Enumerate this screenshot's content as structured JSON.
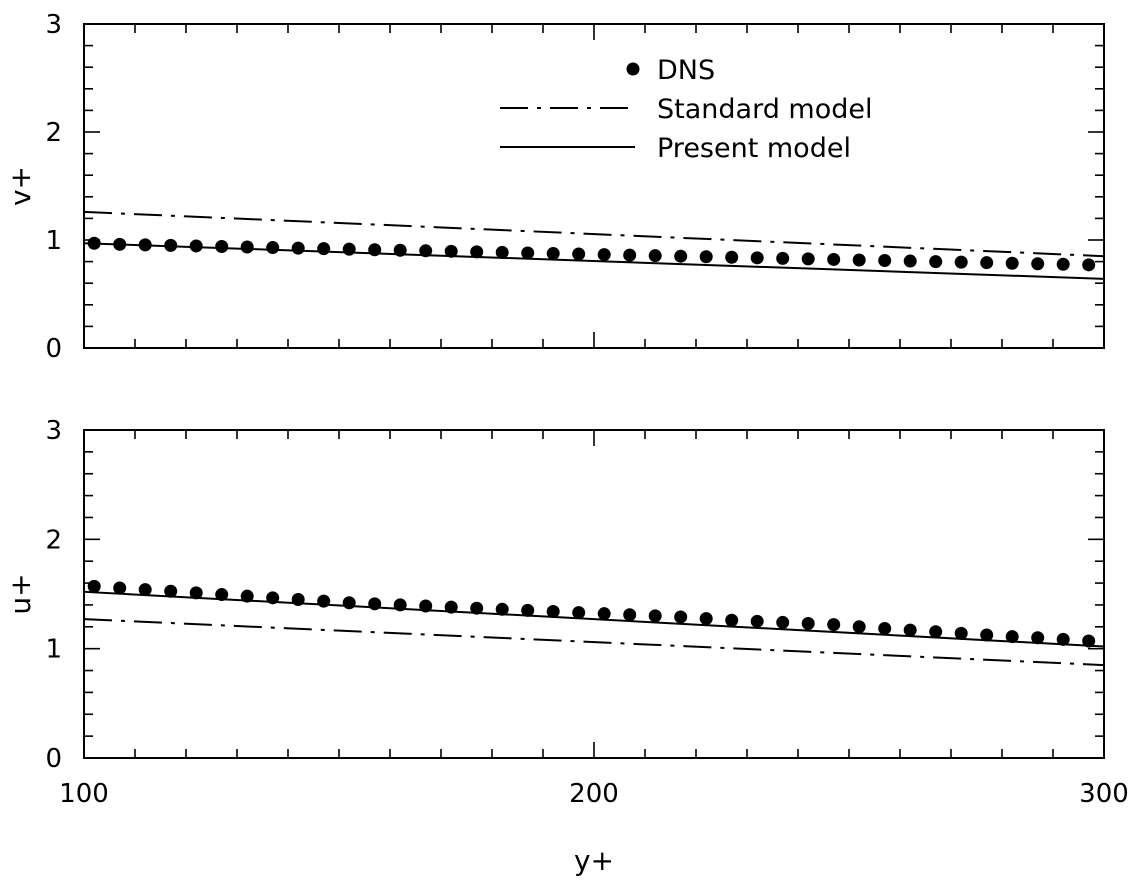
{
  "chart_data": [
    {
      "type": "line",
      "panel": "top",
      "title": "",
      "xlabel": "",
      "ylabel": "v+",
      "xlim": [
        100,
        300
      ],
      "ylim": [
        0,
        3
      ],
      "xticks": [
        100,
        200,
        300
      ],
      "yticks": [
        "0",
        "1",
        "2",
        "3"
      ],
      "legend": {
        "position": "top-center",
        "entries": [
          {
            "label": "DNS",
            "style": "dots"
          },
          {
            "label": "Standard model",
            "style": "dash-dot"
          },
          {
            "label": "Present model",
            "style": "solid"
          }
        ]
      },
      "series": [
        {
          "name": "DNS",
          "style": "dots",
          "x": [
            102,
            107,
            112,
            117,
            122,
            127,
            132,
            137,
            142,
            147,
            152,
            157,
            162,
            167,
            172,
            177,
            182,
            187,
            192,
            197,
            202,
            207,
            212,
            217,
            222,
            227,
            232,
            237,
            242,
            247,
            252,
            257,
            262,
            267,
            272,
            277,
            282,
            287,
            292,
            297
          ],
          "y": [
            0.97,
            0.96,
            0.955,
            0.95,
            0.945,
            0.94,
            0.935,
            0.93,
            0.925,
            0.92,
            0.915,
            0.91,
            0.905,
            0.9,
            0.895,
            0.89,
            0.885,
            0.88,
            0.875,
            0.87,
            0.865,
            0.86,
            0.855,
            0.85,
            0.845,
            0.84,
            0.835,
            0.83,
            0.825,
            0.82,
            0.815,
            0.81,
            0.805,
            0.8,
            0.795,
            0.79,
            0.785,
            0.78,
            0.775,
            0.77
          ]
        },
        {
          "name": "Standard model",
          "style": "dash-dot",
          "x": [
            100,
            300
          ],
          "y": [
            1.26,
            0.85
          ]
        },
        {
          "name": "Present model",
          "style": "solid",
          "x": [
            100,
            300
          ],
          "y": [
            0.97,
            0.64
          ]
        }
      ]
    },
    {
      "type": "line",
      "panel": "bottom",
      "title": "",
      "xlabel": "y+",
      "ylabel": "u+",
      "xlim": [
        100,
        300
      ],
      "ylim": [
        0,
        3
      ],
      "xticks": [
        "100",
        "200",
        "300"
      ],
      "yticks": [
        "0",
        "1",
        "2",
        "3"
      ],
      "series": [
        {
          "name": "DNS",
          "style": "dots",
          "x": [
            102,
            107,
            112,
            117,
            122,
            127,
            132,
            137,
            142,
            147,
            152,
            157,
            162,
            167,
            172,
            177,
            182,
            187,
            192,
            197,
            202,
            207,
            212,
            217,
            222,
            227,
            232,
            237,
            242,
            247,
            252,
            257,
            262,
            267,
            272,
            277,
            282,
            287,
            292,
            297
          ],
          "y": [
            1.57,
            1.555,
            1.54,
            1.525,
            1.51,
            1.495,
            1.48,
            1.465,
            1.45,
            1.435,
            1.42,
            1.41,
            1.4,
            1.39,
            1.38,
            1.37,
            1.36,
            1.35,
            1.34,
            1.33,
            1.32,
            1.31,
            1.3,
            1.29,
            1.275,
            1.26,
            1.25,
            1.24,
            1.23,
            1.22,
            1.2,
            1.185,
            1.17,
            1.155,
            1.14,
            1.125,
            1.11,
            1.1,
            1.085,
            1.07
          ]
        },
        {
          "name": "Standard model",
          "style": "dash-dot",
          "x": [
            100,
            300
          ],
          "y": [
            1.27,
            0.85
          ]
        },
        {
          "name": "Present model",
          "style": "solid",
          "x": [
            100,
            300
          ],
          "y": [
            1.52,
            1.02
          ]
        }
      ]
    }
  ]
}
